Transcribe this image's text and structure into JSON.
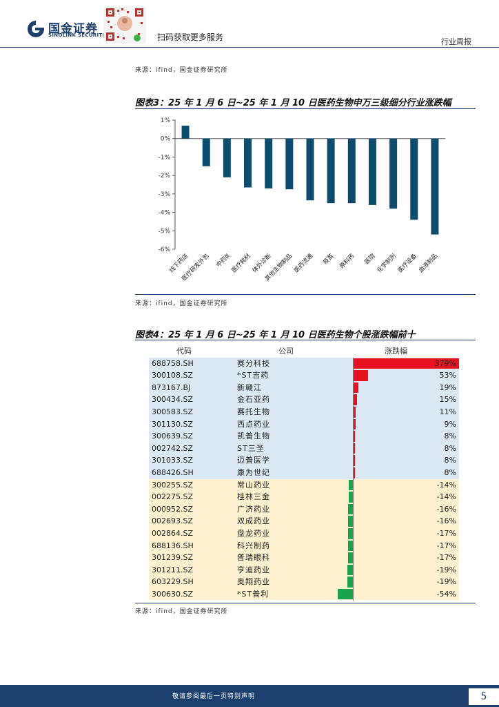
{
  "header": {
    "logo_cn": "国金证券",
    "logo_en": "SINOLINK SECURITIES",
    "qr_caption": "扫码获取更多服务",
    "report_type": "行业周报"
  },
  "source_top": "来源：ifind，国金证券研究所",
  "figure3": {
    "title": "图表3：25 年 1 月 6 日~25 年 1 月 10 日医药生物申万三级细分行业涨跌幅",
    "source": "来源：ifind，国金证券研究所"
  },
  "chart_data": {
    "type": "bar",
    "categories": [
      "线下药店",
      "医疗研发外包",
      "中药Ⅲ",
      "医疗耗材",
      "体外诊断",
      "其他生物制品",
      "医药流通",
      "疫苗",
      "原料药",
      "医院",
      "化学制剂",
      "医疗设备",
      "血液制品"
    ],
    "values": [
      0.7,
      -1.5,
      -2.1,
      -2.65,
      -2.7,
      -2.75,
      -3.35,
      -3.5,
      -3.5,
      -3.6,
      -3.8,
      -4.4,
      -5.2
    ],
    "yticks": [
      "1%",
      "0%",
      "-1%",
      "-2%",
      "-3%",
      "-4%",
      "-5%",
      "-6%"
    ],
    "ylim": [
      -6,
      1
    ],
    "bar_color": "#0e4c6e"
  },
  "figure4": {
    "title": "图表4：25 年 1 月 6 日~25 年 1 月 10 日医药生物个股涨跌幅前十",
    "source": "来源：ifind，国金证券研究所",
    "columns": [
      "代码",
      "公司",
      "涨跌幅"
    ],
    "rows": [
      {
        "code": "688758.SH",
        "name": "赛分科技",
        "pct": "379%",
        "value": 379
      },
      {
        "code": "300108.SZ",
        "name": "*ST吉药",
        "pct": "53%",
        "value": 53
      },
      {
        "code": "873167.BJ",
        "name": "新赣江",
        "pct": "19%",
        "value": 19
      },
      {
        "code": "300434.SZ",
        "name": "金石亚药",
        "pct": "15%",
        "value": 15
      },
      {
        "code": "300583.SZ",
        "name": "赛托生物",
        "pct": "11%",
        "value": 11
      },
      {
        "code": "301130.SZ",
        "name": "西点药业",
        "pct": "9%",
        "value": 9
      },
      {
        "code": "300639.SZ",
        "name": "凯普生物",
        "pct": "8%",
        "value": 8
      },
      {
        "code": "002742.SZ",
        "name": "ST三圣",
        "pct": "8%",
        "value": 8
      },
      {
        "code": "301033.SZ",
        "name": "迈普医学",
        "pct": "8%",
        "value": 8
      },
      {
        "code": "688426.SH",
        "name": "康为世纪",
        "pct": "8%",
        "value": 8
      },
      {
        "code": "300255.SZ",
        "name": "常山药业",
        "pct": "-14%",
        "value": -14
      },
      {
        "code": "002275.SZ",
        "name": "桂林三金",
        "pct": "-14%",
        "value": -14
      },
      {
        "code": "000952.SZ",
        "name": "广济药业",
        "pct": "-16%",
        "value": -16
      },
      {
        "code": "002693.SZ",
        "name": "双成药业",
        "pct": "-16%",
        "value": -16
      },
      {
        "code": "002864.SZ",
        "name": "盘龙药业",
        "pct": "-17%",
        "value": -17
      },
      {
        "code": "688136.SH",
        "name": "科兴制药",
        "pct": "-17%",
        "value": -17
      },
      {
        "code": "301239.SZ",
        "name": "普瑞眼科",
        "pct": "-17%",
        "value": -17
      },
      {
        "code": "301211.SZ",
        "name": "亨迪药业",
        "pct": "-19%",
        "value": -19
      },
      {
        "code": "603229.SH",
        "name": "奥翔药业",
        "pct": "-19%",
        "value": -19
      },
      {
        "code": "300630.SZ",
        "name": "*ST普利",
        "pct": "-54%",
        "value": -54
      }
    ],
    "pos_color": "#e8121e",
    "neg_color": "#1aa34a"
  },
  "footer": {
    "disclaimer": "敬请参阅最后一页特别声明",
    "page": "5"
  }
}
